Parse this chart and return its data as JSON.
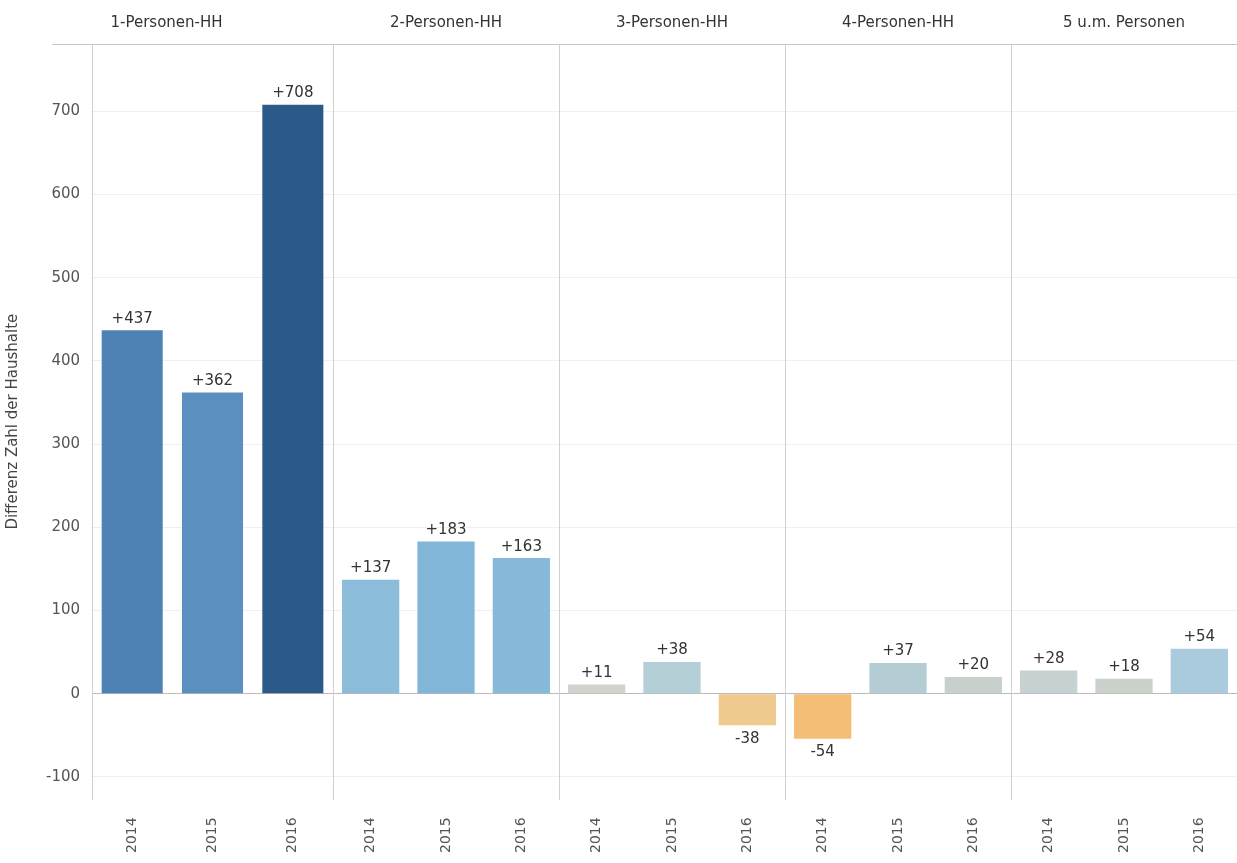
{
  "chart_data": [
    {
      "type": "bar",
      "title": "1-Personen-HH",
      "ylabel": "Differenz Zahl der Haushalte",
      "categories": [
        "2014",
        "2015",
        "2016"
      ],
      "values": [
        437,
        362,
        708
      ],
      "colors": [
        "#4e82b4",
        "#5b8fc0",
        "#2c5a88"
      ],
      "value_labels": [
        "+437",
        "+362",
        "+708"
      ],
      "ylim": [
        -127,
        781
      ],
      "yticks": [
        -100,
        0,
        100,
        200,
        300,
        400,
        500,
        600,
        700
      ],
      "grid": "y"
    },
    {
      "type": "bar",
      "title": "2-Personen-HH",
      "categories": [
        "2014",
        "2015",
        "2016"
      ],
      "values": [
        137,
        183,
        163
      ],
      "colors": [
        "#8bbddb",
        "#82b6d9",
        "#86b9da"
      ],
      "value_labels": [
        "+137",
        "+183",
        "+163"
      ],
      "ylim": [
        -127,
        781
      ],
      "yticks": [
        -100,
        0,
        100,
        200,
        300,
        400,
        500,
        600,
        700
      ],
      "grid": "y",
      "tick_labels": "x"
    },
    {
      "type": "bar",
      "title": "3-Personen-HH",
      "categories": [
        "2014",
        "2015",
        "2016"
      ],
      "values": [
        11,
        38,
        -38
      ],
      "colors": [
        "#d2d3cd",
        "#b5cfd6",
        "#f0c98f"
      ],
      "value_labels": [
        "+11",
        "+38",
        "-38"
      ],
      "ylim": [
        -127,
        781
      ],
      "yticks": [
        -100,
        0,
        100,
        200,
        300,
        400,
        500,
        600,
        700
      ],
      "grid": "y",
      "tick_labels": "x"
    },
    {
      "type": "bar",
      "title": "4-Personen-HH",
      "categories": [
        "2014",
        "2015",
        "2016"
      ],
      "values": [
        -54,
        37,
        20
      ],
      "colors": [
        "#f5be77",
        "#b4ccd4",
        "#c8d0cc"
      ],
      "value_labels": [
        "-54",
        "+37",
        "+20"
      ],
      "ylim": [
        -127,
        781
      ],
      "yticks": [
        -100,
        0,
        100,
        200,
        300,
        400,
        500,
        600,
        700
      ],
      "grid": "y",
      "tick_labels": "x"
    },
    {
      "type": "bar",
      "title": "5 u.m. Personen",
      "categories": [
        "2014",
        "2015",
        "2016"
      ],
      "values": [
        28,
        18,
        54
      ],
      "colors": [
        "#c6d2d2",
        "#cbd2cc",
        "#a9cbdd"
      ],
      "value_labels": [
        "+28",
        "+18",
        "+54"
      ],
      "ylim": [
        -127,
        781
      ],
      "yticks": [
        -100,
        0,
        100,
        200,
        300,
        400,
        500,
        600,
        700
      ],
      "grid": "y",
      "tick_labels": "x"
    }
  ]
}
